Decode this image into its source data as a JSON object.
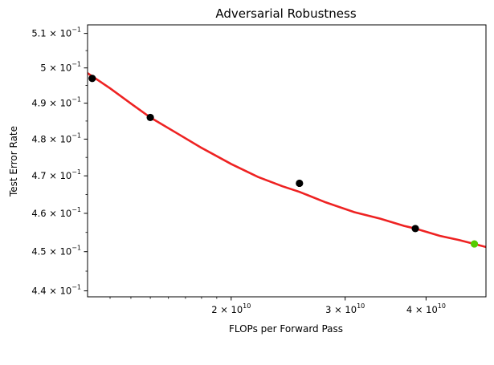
{
  "chart_data": {
    "type": "scatter",
    "title": "Adversarial Robustness",
    "xlabel": "FLOPs per Forward Pass",
    "ylabel": "Test Error Rate",
    "xscale": "log",
    "yscale": "log",
    "xlim": [
      12000000000.0,
      49500000000.0
    ],
    "ylim": [
      0.4385,
      0.5125
    ],
    "xticks": [
      {
        "value": 20000000000.0,
        "mantissa": "2",
        "base": "10",
        "exp": "10"
      },
      {
        "value": 30000000000.0,
        "mantissa": "3",
        "base": "10",
        "exp": "10"
      },
      {
        "value": 40000000000.0,
        "mantissa": "4",
        "base": "10",
        "exp": "10"
      }
    ],
    "yticks": [
      {
        "value": 0.44,
        "mantissa": "4.4",
        "base": "10",
        "exp": "−1"
      },
      {
        "value": 0.45,
        "mantissa": "4.5",
        "base": "10",
        "exp": "−1"
      },
      {
        "value": 0.46,
        "mantissa": "4.6",
        "base": "10",
        "exp": "−1"
      },
      {
        "value": 0.47,
        "mantissa": "4.7",
        "base": "10",
        "exp": "−1"
      },
      {
        "value": 0.48,
        "mantissa": "4.8",
        "base": "10",
        "exp": "−1"
      },
      {
        "value": 0.49,
        "mantissa": "4.9",
        "base": "10",
        "exp": "−1"
      },
      {
        "value": 0.5,
        "mantissa": "5",
        "base": "10",
        "exp": "−1"
      },
      {
        "value": 0.51,
        "mantissa": "5.1",
        "base": "10",
        "exp": "−1"
      }
    ],
    "series": [
      {
        "color": "#000000",
        "marker": "circle",
        "points": [
          {
            "x": 12200000000.0,
            "y": 0.497
          },
          {
            "x": 15000000000.0,
            "y": 0.486
          },
          {
            "x": 25500000000.0,
            "y": 0.468
          },
          {
            "x": 38500000000.0,
            "y": 0.456
          }
        ]
      },
      {
        "color": "#55cc00",
        "marker": "circle",
        "points": [
          {
            "x": 47500000000.0,
            "y": 0.452
          }
        ]
      }
    ],
    "fit_curve": {
      "color": "#ee2222",
      "x": [
        12000000000.0,
        13000000000.0,
        14000000000.0,
        15000000000.0,
        16500000000.0,
        18000000000.0,
        20000000000.0,
        22000000000.0,
        24000000000.0,
        25500000000.0,
        28000000000.0,
        31000000000.0,
        34000000000.0,
        37000000000.0,
        38500000000.0,
        42000000000.0,
        45000000000.0,
        47500000000.0,
        49500000000.0
      ],
      "y": [
        0.4985,
        0.4942,
        0.4899,
        0.486,
        0.4816,
        0.4776,
        0.4732,
        0.4697,
        0.4672,
        0.4657,
        0.4629,
        0.4603,
        0.4586,
        0.4567,
        0.456,
        0.4541,
        0.453,
        0.452,
        0.4512
      ]
    },
    "grid": false,
    "legend": "none"
  }
}
